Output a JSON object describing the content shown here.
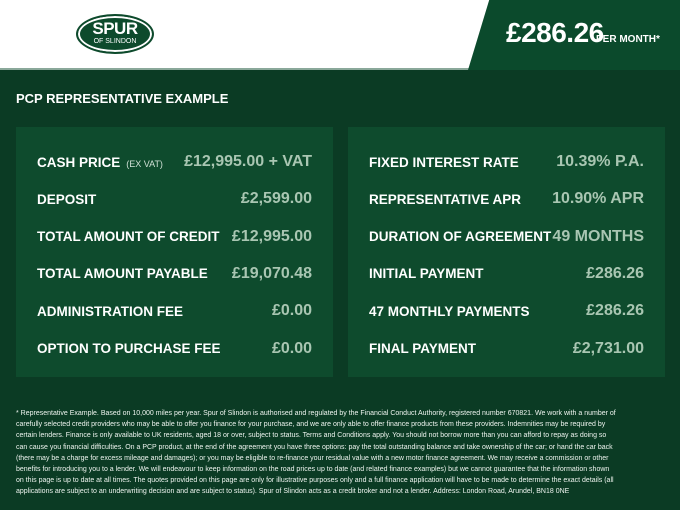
{
  "header": {
    "logo_top": "SPUR",
    "logo_bottom": "OF SLINDON",
    "price": "£286.26",
    "per_month": "PER MONTH*"
  },
  "title": "PCP REPRESENTATIVE EXAMPLE",
  "left": [
    {
      "label": "CASH PRICE",
      "note": "(EX VAT)",
      "value": "£12,995.00 + VAT"
    },
    {
      "label": "DEPOSIT",
      "value": "£2,599.00"
    },
    {
      "label": "TOTAL AMOUNT OF CREDIT",
      "value": "£12,995.00"
    },
    {
      "label": "TOTAL AMOUNT PAYABLE",
      "value": "£19,070.48"
    },
    {
      "label": "ADMINISTRATION FEE",
      "value": "£0.00"
    },
    {
      "label": "OPTION TO PURCHASE FEE",
      "value": "£0.00"
    }
  ],
  "right": [
    {
      "label": "FIXED INTEREST RATE",
      "value": "10.39% P.A."
    },
    {
      "label": "REPRESENTATIVE APR",
      "value": "10.90% APR"
    },
    {
      "label": "DURATION OF AGREEMENT",
      "value": "49 MONTHS"
    },
    {
      "label": "INITIAL PAYMENT",
      "value": "£286.26"
    },
    {
      "label": "47 MONTHLY PAYMENTS",
      "value": "£286.26"
    },
    {
      "label": "FINAL PAYMENT",
      "value": "£2,731.00"
    }
  ],
  "disclaimer": "* Representative Example. Based on 10,000 miles per year. Spur of Slindon is authorised and regulated by the Financial Conduct Authority, registered number 670821. We work with a number of carefully selected credit providers who may be able to offer you finance for your purchase, and we are only able to offer finance products from these providers. Indemnities may be required by certain lenders. Finance is only available to UK residents, aged 18 or over, subject to status. Terms and Conditions apply. You should not borrow more than you can afford to repay as doing so can cause you financial difficulties. On a PCP product, at the end of the agreement you have three options: pay the total outstanding balance and take ownership of the car; or hand the car back (there may be a charge for excess mileage and damages); or you may be eligible to re-finance your residual value with a new motor finance agreement. We may receive a commission or other benefits for introducing you to a lender. We will endeavour to keep information on the road prices up to date (and related finance examples) but we cannot guarantee that the information shown on this page is up to date at all times. The quotes provided on this page are only for illustrative purposes only and a full finance application will have to be made to determine the exact details (all applications are subject to an underwriting decision and are subject to status). Spur of Slindon acts as a credit broker and not a lender. Address: London Road, Arundel, BN18 0NE"
}
